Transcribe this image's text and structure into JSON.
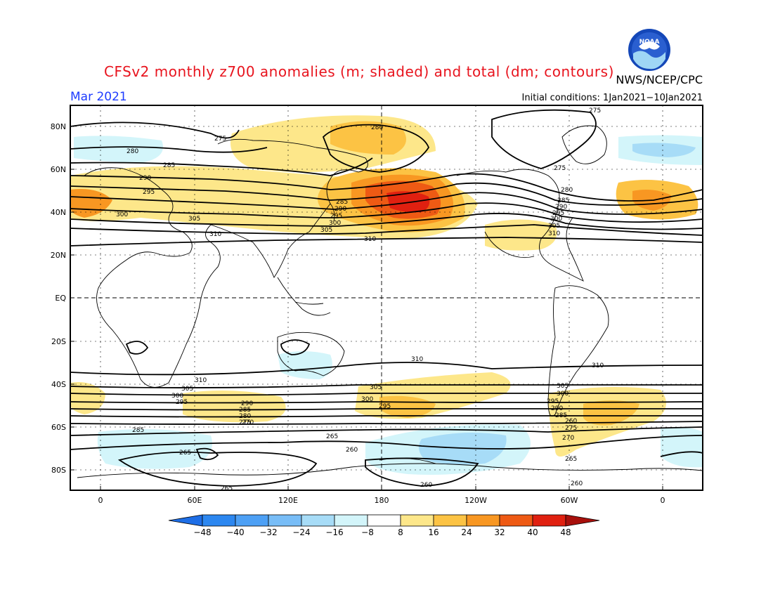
{
  "header": {
    "title": "CFSv2 monthly z700 anomalies (m; shaded) and total (dm; contours)",
    "agency": "NWS/NCEP/CPC",
    "period": "Mar 2021",
    "initial_conditions": "Initial conditions: 1Jan2021−10Jan2021",
    "logo_text": "NOAA"
  },
  "map": {
    "lat_labels": [
      "80N",
      "60N",
      "40N",
      "20N",
      "EQ",
      "20S",
      "40S",
      "60S",
      "80S"
    ],
    "lon_labels": [
      "0",
      "60E",
      "120E",
      "180",
      "120W",
      "60W",
      "0"
    ],
    "contour_labels": [
      "275",
      "280",
      "285",
      "290",
      "295",
      "300",
      "305",
      "310",
      "265",
      "270",
      "260"
    ]
  },
  "colorbar": {
    "ticks": [
      "−48",
      "−40",
      "−32",
      "−24",
      "−16",
      "−8",
      "8",
      "16",
      "24",
      "32",
      "40",
      "48"
    ],
    "colors": [
      "#1e6ee6",
      "#2c87f0",
      "#4da0f5",
      "#78bdf7",
      "#a7dcf7",
      "#d3f5fa",
      "#ffffff",
      "#fde78a",
      "#fcc344",
      "#f89722",
      "#ee5a14",
      "#e02010",
      "#a8100c"
    ]
  },
  "colors": {
    "title": "#e8141e",
    "period": "#1e3cff",
    "contour": "#000000",
    "coast": "#000000"
  }
}
